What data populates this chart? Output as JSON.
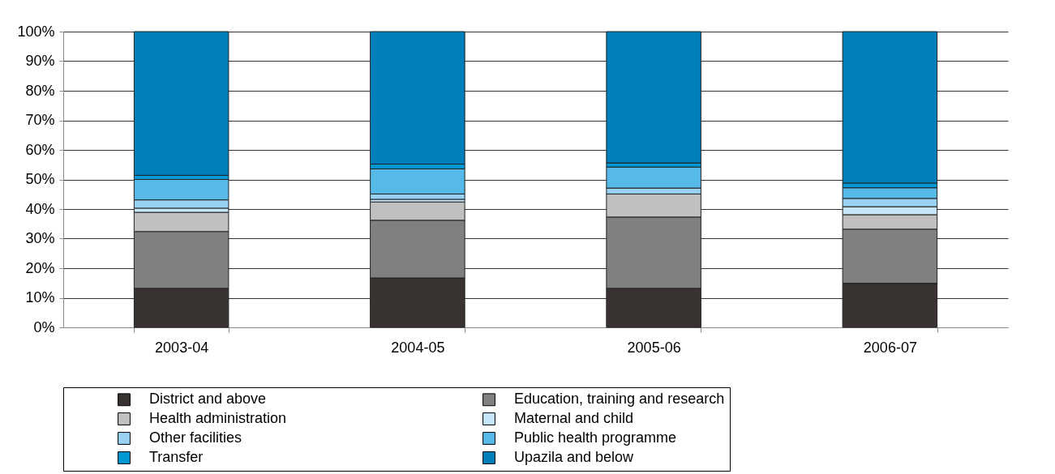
{
  "chart_data": {
    "type": "bar",
    "stacked": true,
    "categories": [
      "2003-04",
      "2004-05",
      "2005-06",
      "2006-07"
    ],
    "ylim": [
      0,
      100
    ],
    "yticks": [
      {
        "value": 0,
        "label": "0%"
      },
      {
        "value": 10,
        "label": "10%"
      },
      {
        "value": 20,
        "label": "20%"
      },
      {
        "value": 30,
        "label": "30%"
      },
      {
        "value": 40,
        "label": "40%"
      },
      {
        "value": 50,
        "label": "50%"
      },
      {
        "value": 60,
        "label": "60%"
      },
      {
        "value": 70,
        "label": "70%"
      },
      {
        "value": 80,
        "label": "80%"
      },
      {
        "value": 90,
        "label": "90%"
      },
      {
        "value": 100,
        "label": "100%"
      }
    ],
    "grid": "y",
    "legend": "bottom",
    "series": [
      {
        "name": "District and above",
        "color": "#383230",
        "values": [
          13.2,
          16.7,
          13.2,
          14.9
        ]
      },
      {
        "name": "Education, training and research",
        "color": "#808080",
        "values": [
          19.2,
          19.5,
          24.1,
          18.3
        ]
      },
      {
        "name": "Health administration",
        "color": "#c0c0c0",
        "values": [
          6.5,
          6.2,
          7.8,
          4.9
        ]
      },
      {
        "name": "Maternal and child",
        "color": "#c5e5f8",
        "values": [
          1.4,
          0.9,
          null,
          2.7
        ]
      },
      {
        "name": "Other facilities",
        "color": "#99d1f2",
        "values": [
          2.8,
          1.8,
          2.0,
          2.8
        ]
      },
      {
        "name": "Public health programme",
        "color": "#57b9e8",
        "values": [
          6.9,
          8.5,
          7.1,
          3.6
        ]
      },
      {
        "name": "Transfer",
        "color": "#0099d4",
        "values": [
          1.4,
          1.6,
          1.4,
          1.6
        ]
      },
      {
        "name": "Upazila and below",
        "color": "#0080bb",
        "values": [
          48.6,
          44.8,
          44.4,
          51.2
        ]
      }
    ]
  }
}
